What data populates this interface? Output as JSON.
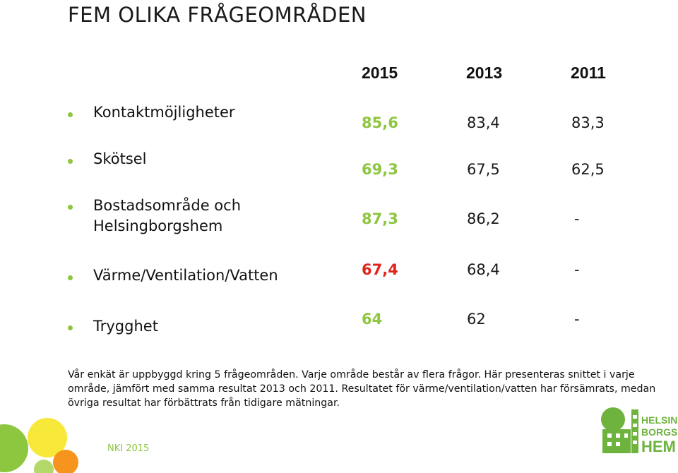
{
  "title": "FEM OLIKA FRÅGEOMRÅDEN",
  "years": [
    "2015",
    "2013",
    "2011"
  ],
  "rows": [
    {
      "label_lines": [
        "Kontaktmöjligheter"
      ],
      "v2015": "85,6",
      "v2013": "83,4",
      "v2011": "83,3",
      "color2015": "#8dc63f"
    },
    {
      "label_lines": [
        "Skötsel"
      ],
      "v2015": "69,3",
      "v2013": "67,5",
      "v2011": "62,5",
      "color2015": "#8dc63f"
    },
    {
      "label_lines": [
        "Bostadsområde och",
        "Helsingborgshem"
      ],
      "v2015": "87,3",
      "v2013": "86,2",
      "v2011": "-",
      "color2015": "#8dc63f"
    },
    {
      "label_lines": [
        "Värme/Ventilation/Vatten"
      ],
      "v2015": "67,4",
      "v2013": "68,4",
      "v2011": "-",
      "color2015": "#e2231a"
    },
    {
      "label_lines": [
        "Trygghet"
      ],
      "v2015": "64",
      "v2013": "62",
      "v2011": "-",
      "color2015": "#8dc63f"
    }
  ],
  "bullet_color": "#8dc63f",
  "note": "Vår enkät är uppbyggd kring 5 frågeområden. Varje område består av flera frågor. Här presenteras snittet i varje område, jämfört med samma resultat 2013 och 2011. Resultatet för värme/ventilation/vatten har försämrats, medan övriga resultat har förbättrats från tidigare mätningar.",
  "footer": "NKI 2015",
  "logo": {
    "line1": "HELSING",
    "line2": "BORGS",
    "line3": "HEM",
    "color": "#6fb33f"
  }
}
